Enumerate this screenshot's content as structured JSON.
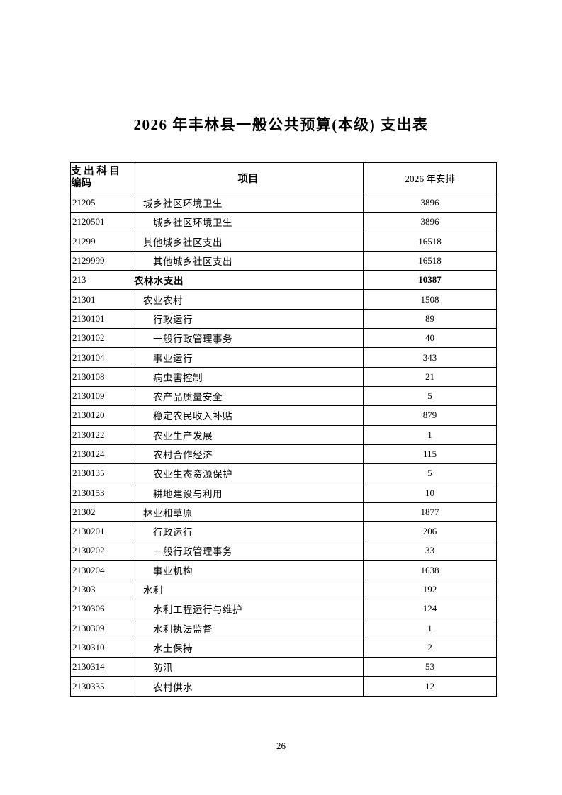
{
  "document": {
    "title": "2026 年丰林县一般公共预算(本级) 支出表",
    "page_number": "26"
  },
  "colors": {
    "text": "#000000",
    "border": "#000000",
    "background": "#ffffff"
  },
  "table": {
    "headers": {
      "code_line1": "支 出 科 目",
      "code_line2": "编码",
      "item": "项目",
      "amount": "2026 年安排"
    },
    "rows": [
      {
        "code": "21205",
        "item": "城乡社区环境卫生",
        "amount": "3896",
        "indent": 1,
        "bold": false
      },
      {
        "code": "2120501",
        "item": "城乡社区环境卫生",
        "amount": "3896",
        "indent": 2,
        "bold": false
      },
      {
        "code": "21299",
        "item": "其他城乡社区支出",
        "amount": "16518",
        "indent": 1,
        "bold": false
      },
      {
        "code": "2129999",
        "item": "其他城乡社区支出",
        "amount": "16518",
        "indent": 2,
        "bold": false
      },
      {
        "code": "213",
        "item": "农林水支出",
        "amount": "10387",
        "indent": 0,
        "bold": true
      },
      {
        "code": "21301",
        "item": "农业农村",
        "amount": "1508",
        "indent": 1,
        "bold": false
      },
      {
        "code": "2130101",
        "item": "行政运行",
        "amount": "89",
        "indent": 2,
        "bold": false
      },
      {
        "code": "2130102",
        "item": "一般行政管理事务",
        "amount": "40",
        "indent": 2,
        "bold": false
      },
      {
        "code": "2130104",
        "item": "事业运行",
        "amount": "343",
        "indent": 2,
        "bold": false
      },
      {
        "code": "2130108",
        "item": "病虫害控制",
        "amount": "21",
        "indent": 2,
        "bold": false
      },
      {
        "code": "2130109",
        "item": "农产品质量安全",
        "amount": "5",
        "indent": 2,
        "bold": false
      },
      {
        "code": "2130120",
        "item": "稳定农民收入补贴",
        "amount": "879",
        "indent": 2,
        "bold": false
      },
      {
        "code": "2130122",
        "item": "农业生产发展",
        "amount": "1",
        "indent": 2,
        "bold": false
      },
      {
        "code": "2130124",
        "item": "农村合作经济",
        "amount": "115",
        "indent": 2,
        "bold": false
      },
      {
        "code": "2130135",
        "item": "农业生态资源保护",
        "amount": "5",
        "indent": 2,
        "bold": false
      },
      {
        "code": "2130153",
        "item": "耕地建设与利用",
        "amount": "10",
        "indent": 2,
        "bold": false
      },
      {
        "code": "21302",
        "item": "林业和草原",
        "amount": "1877",
        "indent": 1,
        "bold": false
      },
      {
        "code": "2130201",
        "item": "行政运行",
        "amount": "206",
        "indent": 2,
        "bold": false
      },
      {
        "code": "2130202",
        "item": "一般行政管理事务",
        "amount": "33",
        "indent": 2,
        "bold": false
      },
      {
        "code": "2130204",
        "item": "事业机构",
        "amount": "1638",
        "indent": 2,
        "bold": false
      },
      {
        "code": "21303",
        "item": "水利",
        "amount": "192",
        "indent": 1,
        "bold": false
      },
      {
        "code": "2130306",
        "item": "水利工程运行与维护",
        "amount": "124",
        "indent": 2,
        "bold": false
      },
      {
        "code": "2130309",
        "item": "水利执法监督",
        "amount": "1",
        "indent": 2,
        "bold": false
      },
      {
        "code": "2130310",
        "item": "水土保持",
        "amount": "2",
        "indent": 2,
        "bold": false
      },
      {
        "code": "2130314",
        "item": "防汛",
        "amount": "53",
        "indent": 2,
        "bold": false
      },
      {
        "code": "2130335",
        "item": "农村供水",
        "amount": "12",
        "indent": 2,
        "bold": false
      }
    ]
  }
}
